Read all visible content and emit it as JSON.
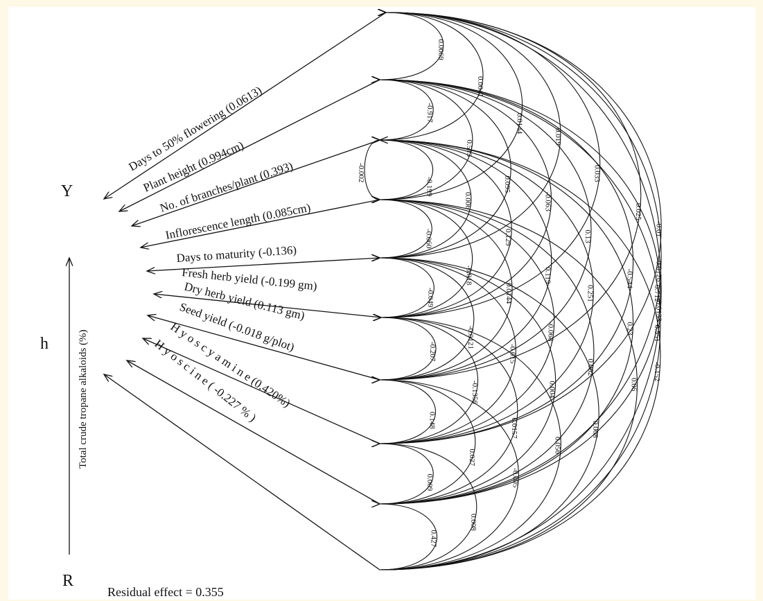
{
  "figure": {
    "left_label": "Y",
    "middle_label": "h",
    "bottom_label": "R",
    "side_axis_label": "Total crude tropane alkaloids (%)",
    "residual": "Residual effect = 0.355"
  },
  "paths": [
    "Days to 50% flowering (0.0613)",
    "Plant height (0.994cm)",
    "No. of branches/plant  (0.393)",
    "Inflorescence length (0.085cm)",
    "Days to maturity (-0.136)",
    "Fresh herb yield (-0.199 gm)",
    "Dry herb yield (0.113 gm)",
    "Seed yield (-0.018 g/plot)",
    "H y o s c y a m i n e   (0.420%)",
    "H y o s c i n e ( -0.227 % )"
  ],
  "correlations": [
    {
      "from": 0,
      "to": 1,
      "label": "0.0069"
    },
    {
      "from": 0,
      "to": 2,
      "label": "0.0041"
    },
    {
      "from": 0,
      "to": 3,
      "label": "0.0144"
    },
    {
      "from": 0,
      "to": 4,
      "label": "0.019"
    },
    {
      "from": 0,
      "to": 5,
      "label": "0.033"
    },
    {
      "from": 0,
      "to": 6,
      "label": "0.025"
    },
    {
      "from": 0,
      "to": 7,
      "label": "-0.01"
    },
    {
      "from": 0,
      "to": 8,
      "label": "-0.0126"
    },
    {
      "from": 0,
      "to": 9,
      "label": "-0.0133"
    },
    {
      "from": 1,
      "to": 2,
      "label": "-0.917"
    },
    {
      "from": 1,
      "to": 3,
      "label": "0.513"
    },
    {
      "from": 1,
      "to": 4,
      "label": "0.095"
    },
    {
      "from": 1,
      "to": 5,
      "label": "-0.063"
    },
    {
      "from": 1,
      "to": 6,
      "label": "0.13"
    },
    {
      "from": 1,
      "to": 7,
      "label": "-0.544"
    },
    {
      "from": 1,
      "to": 8,
      "label": "0.712"
    },
    {
      "from": 1,
      "to": 9,
      "label": "0.551"
    },
    {
      "from": 2,
      "to": 3,
      "label": "-0.199"
    },
    {
      "from": 2,
      "to": 4,
      "label": "0.006"
    },
    {
      "from": 2,
      "to": 5,
      "label": "0.129"
    },
    {
      "from": 2,
      "to": 6,
      "label": "0.119"
    },
    {
      "from": 2,
      "to": 7,
      "label": "0.251"
    },
    {
      "from": 2,
      "to": 8,
      "label": "0.23"
    },
    {
      "from": 2,
      "to": 9,
      "label": "-0.152"
    },
    {
      "from": 2,
      "to": 3,
      "label": "-0.002",
      "special": true
    },
    {
      "from": 3,
      "to": 4,
      "label": "-0.060"
    },
    {
      "from": 3,
      "to": 5,
      "label": "-0.018"
    },
    {
      "from": 3,
      "to": 6,
      "label": "0.0144"
    },
    {
      "from": 3,
      "to": 7,
      "label": "-0.068"
    },
    {
      "from": 3,
      "to": 8,
      "label": "0.062"
    },
    {
      "from": 3,
      "to": 9,
      "label": "0.06"
    },
    {
      "from": 4,
      "to": 5,
      "label": "-0.049"
    },
    {
      "from": 4,
      "to": 6,
      "label": "-0.0121"
    },
    {
      "from": 4,
      "to": 7,
      "label": "-0.015"
    },
    {
      "from": 4,
      "to": 8,
      "label": "0.004"
    },
    {
      "from": 4,
      "to": 9,
      "label": "0.008"
    },
    {
      "from": 5,
      "to": 6,
      "label": "-0.207"
    },
    {
      "from": 5,
      "to": 7,
      "label": "-0.1356"
    },
    {
      "from": 5,
      "to": 8,
      "label": "0.0157"
    },
    {
      "from": 5,
      "to": 9,
      "label": "0.056"
    },
    {
      "from": 6,
      "to": 7,
      "label": "0.148"
    },
    {
      "from": 6,
      "to": 8,
      "label": "0.027"
    },
    {
      "from": 6,
      "to": 9,
      "label": "-0.005"
    },
    {
      "from": 7,
      "to": 8,
      "label": "0.009"
    },
    {
      "from": 7,
      "to": 9,
      "label": "0.008"
    },
    {
      "from": 8,
      "to": 9,
      "label": "0.427"
    }
  ]
}
